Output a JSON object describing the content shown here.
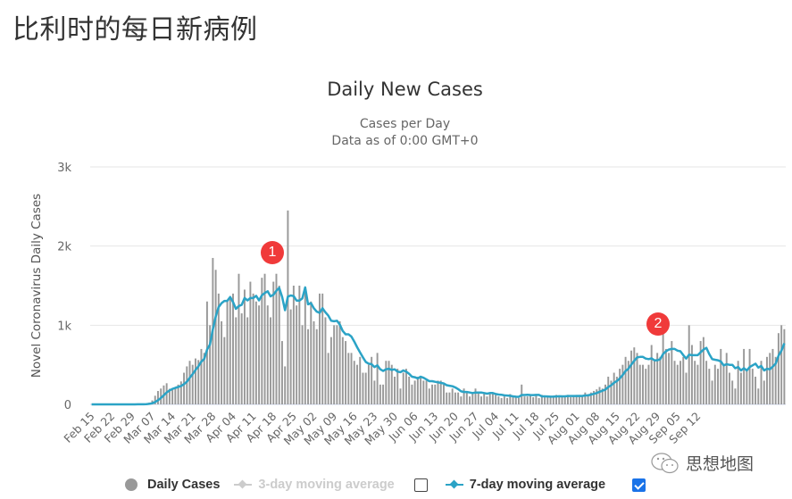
{
  "page": {
    "title": "比利时的每日新病例"
  },
  "watermark": {
    "text": "思想地图",
    "icon": "wechat-icon"
  },
  "chart_data": {
    "type": "bar",
    "title": "Daily New Cases",
    "subtitle_line1": "Cases per Day",
    "subtitle_line2": "Data as of 0:00 GMT+0",
    "xlabel": "",
    "ylabel": "Novel Coronavirus Daily Cases",
    "ylim": [
      0,
      3000
    ],
    "yticks": [
      "0",
      "1k",
      "2k",
      "3k"
    ],
    "ytick_values": [
      0,
      1000,
      2000,
      3000
    ],
    "grid": true,
    "start_date": "Feb 15",
    "xticks": [
      "Feb 15",
      "Feb 22",
      "Feb 29",
      "Mar 07",
      "Mar 14",
      "Mar 21",
      "Mar 28",
      "Apr 04",
      "Apr 11",
      "Apr 18",
      "Apr 25",
      "May 02",
      "May 09",
      "May 16",
      "May 23",
      "May 30",
      "Jun 06",
      "Jun 13",
      "Jun 20",
      "Jun 27",
      "Jul 04",
      "Jul 11",
      "Jul 18",
      "Jul 25",
      "Aug 01",
      "Aug 08",
      "Aug 15",
      "Aug 22",
      "Aug 29",
      "Sep 05",
      "Sep 12"
    ],
    "series": [
      {
        "name": "Daily Cases",
        "type": "bar",
        "color": "#999999",
        "values": [
          0,
          0,
          0,
          0,
          0,
          0,
          0,
          0,
          0,
          0,
          0,
          0,
          0,
          0,
          1,
          1,
          2,
          0,
          6,
          13,
          23,
          50,
          109,
          169,
          200,
          239,
          267,
          197,
          185,
          200,
          250,
          290,
          400,
          480,
          550,
          500,
          580,
          560,
          700,
          650,
          1300,
          1000,
          1850,
          1700,
          1400,
          1050,
          850,
          1300,
          1350,
          1400,
          1100,
          1650,
          1150,
          1450,
          1100,
          1550,
          1400,
          1300,
          1250,
          1600,
          1650,
          1250,
          1100,
          1550,
          1650,
          1500,
          800,
          480,
          2450,
          1200,
          1500,
          1250,
          1500,
          1000,
          1450,
          950,
          1300,
          1050,
          950,
          1400,
          1400,
          1100,
          650,
          850,
          1000,
          1000,
          1050,
          850,
          800,
          650,
          650,
          550,
          500,
          600,
          400,
          400,
          500,
          600,
          300,
          650,
          250,
          250,
          550,
          550,
          500,
          350,
          450,
          200,
          400,
          450,
          350,
          250,
          300,
          350,
          350,
          300,
          300,
          200,
          250,
          250,
          300,
          300,
          250,
          150,
          150,
          200,
          150,
          150,
          100,
          200,
          150,
          100,
          150,
          200,
          150,
          100,
          150,
          100,
          150,
          150,
          120,
          100,
          80,
          100,
          80,
          130,
          100,
          90,
          80,
          250,
          100,
          100,
          110,
          90,
          110,
          80,
          120,
          100,
          90,
          90,
          100,
          120,
          100,
          110,
          100,
          120,
          90,
          100,
          120,
          110,
          100,
          150,
          130,
          150,
          170,
          190,
          220,
          200,
          250,
          350,
          300,
          400,
          350,
          450,
          500,
          600,
          550,
          680,
          720,
          650,
          500,
          500,
          450,
          500,
          750,
          550,
          650,
          600,
          950,
          700,
          650,
          800,
          550,
          500,
          550,
          600,
          400,
          1000,
          750,
          550,
          500,
          800,
          850,
          550,
          450,
          300,
          500,
          450,
          700,
          500,
          650,
          400,
          300,
          200,
          550,
          400,
          700,
          450,
          700,
          450,
          350,
          200,
          550,
          300,
          600,
          650,
          700,
          600,
          900,
          1000,
          950
        ]
      },
      {
        "name": "3-day moving average",
        "type": "line",
        "color": "#cccccc",
        "visible": false
      },
      {
        "name": "7-day moving average",
        "type": "line",
        "color": "#2ba3c6",
        "visible": true
      }
    ],
    "annotations": [
      {
        "label": "1",
        "near": "Apr 10",
        "value_approx": 1950
      },
      {
        "label": "2",
        "near": "Aug 06",
        "value_approx": 1000
      }
    ],
    "legend": {
      "position": "bottom",
      "items": [
        {
          "label": "Daily Cases",
          "enabled": true
        },
        {
          "label": "3-day moving average",
          "enabled": false,
          "checkbox_checked": false
        },
        {
          "label": "7-day moving average",
          "enabled": true,
          "checkbox_checked": true
        }
      ]
    }
  }
}
